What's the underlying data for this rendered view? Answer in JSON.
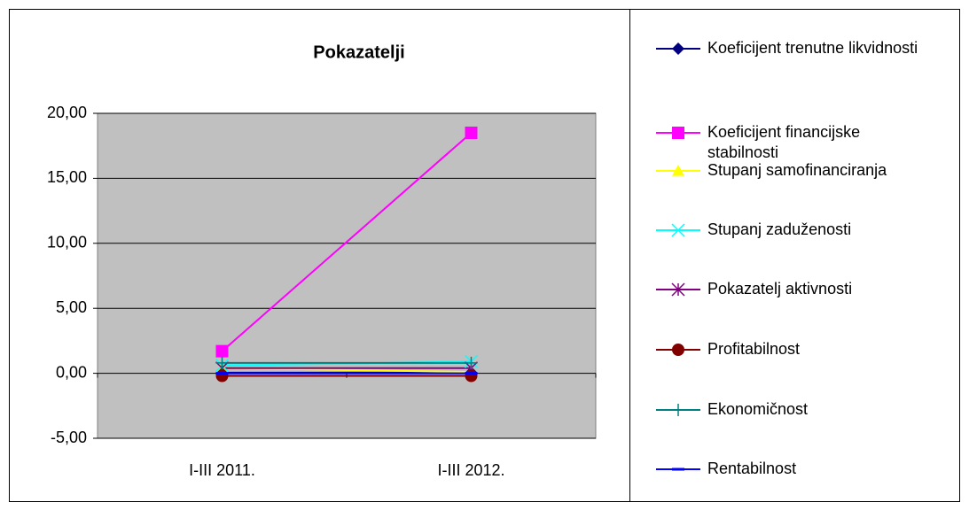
{
  "chart_data": {
    "type": "line",
    "title": "Pokazatelji",
    "categories": [
      "I-III 2011.",
      "I-III 2012."
    ],
    "series": [
      {
        "name": "Koeficijent trenutne likvidnosti",
        "color": "#000080",
        "values": [
          0.05,
          0.05
        ]
      },
      {
        "name": "Koeficijent financijske stabilnosti",
        "color": "#ff00ff",
        "values": [
          1.7,
          18.5
        ]
      },
      {
        "name": "Stupanj samofinanciranja",
        "color": "#ffff00",
        "values": [
          0.4,
          0.1
        ]
      },
      {
        "name": "Stupanj zaduženosti",
        "color": "#00ffff",
        "values": [
          0.6,
          0.9
        ]
      },
      {
        "name": "Pokazatelj aktivnosti",
        "color": "#800080",
        "values": [
          0.4,
          0.4
        ]
      },
      {
        "name": "Profitabilnost",
        "color": "#800000",
        "values": [
          -0.2,
          -0.2
        ]
      },
      {
        "name": "Ekonomičnost",
        "color": "#008080",
        "values": [
          0.8,
          0.8
        ]
      },
      {
        "name": "Rentabilnost",
        "color": "#0000ff",
        "values": [
          0.0,
          0.0
        ]
      }
    ],
    "ylim": [
      -5,
      20
    ],
    "yticks": [
      {
        "value": -5,
        "label": "-5,00"
      },
      {
        "value": 0,
        "label": "0,00"
      },
      {
        "value": 5,
        "label": "5,00"
      },
      {
        "value": 10,
        "label": "10,00"
      },
      {
        "value": 15,
        "label": "15,00"
      },
      {
        "value": 20,
        "label": "20,00"
      }
    ],
    "grid": true
  }
}
